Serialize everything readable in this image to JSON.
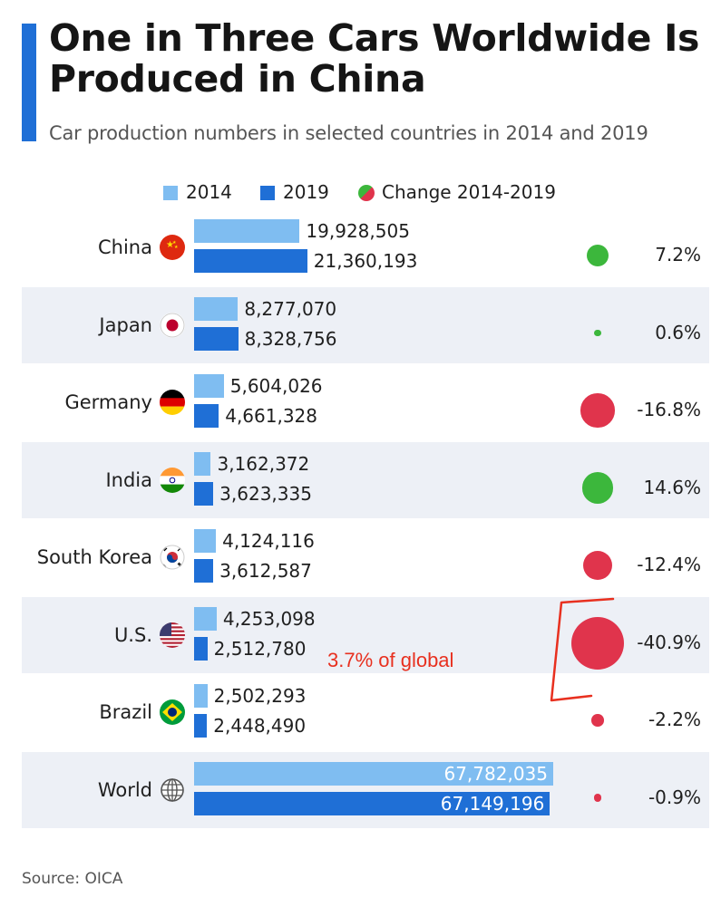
{
  "title": "One in Three Cars Worldwide Is Produced in China",
  "subtitle": "Car production numbers in selected countries in 2014 and 2019",
  "source": "Source: OICA",
  "annotation": "3.7% of global",
  "colors": {
    "accent": "#1f6fd6",
    "bar_2014": "#7fbdf1",
    "bar_2019": "#1f6fd6",
    "positive": "#3cb73c",
    "negative": "#e0344c",
    "annotation": "#e8301f",
    "row_alt": "#edf0f6"
  },
  "legend": [
    {
      "label": "2014",
      "symbol": "square-light-blue"
    },
    {
      "label": "2019",
      "symbol": "square-dark-blue"
    },
    {
      "label": "Change 2014-2019",
      "symbol": "split-circle-green-red"
    }
  ],
  "chart_data": {
    "type": "bar",
    "orientation": "horizontal",
    "categories": [
      "China",
      "Japan",
      "Germany",
      "India",
      "South Korea",
      "U.S.",
      "Brazil",
      "World"
    ],
    "series": [
      {
        "name": "2014",
        "values": [
          19928505,
          8277070,
          5604026,
          3162372,
          4124116,
          4253098,
          2502293,
          67782035
        ],
        "labels": [
          "19,928,505",
          "8,277,070",
          "5,604,026",
          "3,162,372",
          "4,124,116",
          "4,253,098",
          "2,502,293",
          "67,782,035"
        ]
      },
      {
        "name": "2019",
        "values": [
          21360193,
          8328756,
          4661328,
          3623335,
          3612587,
          2512780,
          2448490,
          67149196
        ],
        "labels": [
          "21,360,193",
          "8,328,756",
          "4,661,328",
          "3,623,335",
          "3,612,587",
          "2,512,780",
          "2,448,490",
          "67,149,196"
        ]
      }
    ],
    "change": {
      "name": "Change 2014-2019",
      "values": [
        7.2,
        0.6,
        -16.8,
        14.6,
        -12.4,
        -40.9,
        -2.2,
        -0.9
      ],
      "labels": [
        "7.2%",
        "0.6%",
        "-16.8%",
        "14.6%",
        "-12.4%",
        "-40.9%",
        "-2.2%",
        "-0.9%"
      ]
    },
    "flags": [
      "china-flag-icon",
      "japan-flag-icon",
      "germany-flag-icon",
      "india-flag-icon",
      "south-korea-flag-icon",
      "us-flag-icon",
      "brazil-flag-icon",
      "globe-icon"
    ],
    "xlim": [
      0,
      67782035
    ],
    "grid": false,
    "legend_position": "top-center"
  }
}
